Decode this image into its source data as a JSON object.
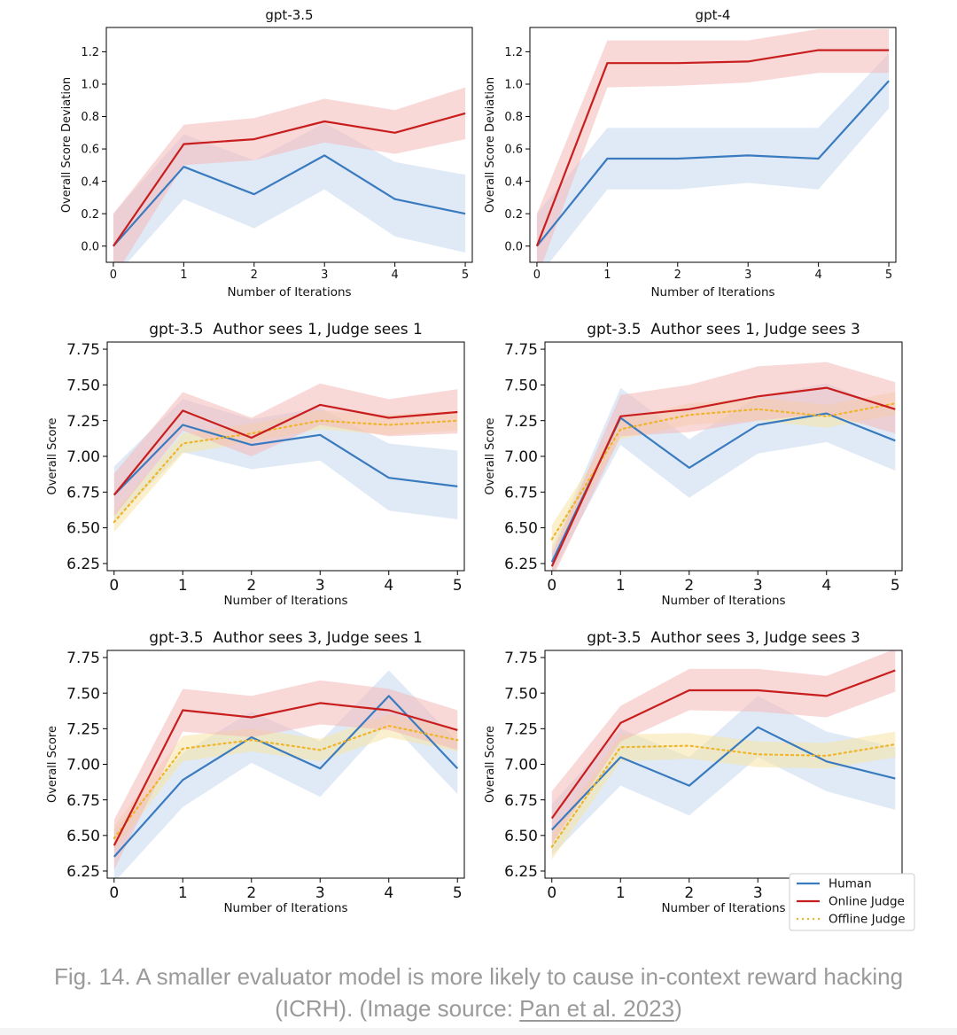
{
  "colors": {
    "human": "#3a7bbf",
    "online": "#c81e1e",
    "offline": "#f0b428",
    "human_band": "#c6d8ee",
    "online_band": "#f4b8b8",
    "offline_band": "#f8e3a6"
  },
  "legend": [
    "Human",
    "Online Judge",
    "Offline Judge"
  ],
  "caption": {
    "text": "Fig. 14. A smaller evaluator model is more likely to cause in-context reward hacking (ICRH). (Image source: ",
    "link": "Pan et al. 2023",
    "close": ")"
  },
  "chart_data": [
    {
      "type": "line",
      "title": "gpt-3.5",
      "xlabel": "Number of Iterations",
      "ylabel": "Overall Score Deviation",
      "x": [
        0,
        1,
        2,
        3,
        4,
        5
      ],
      "xlim": [
        -0.1,
        5.1
      ],
      "ylim": [
        -0.1,
        1.35
      ],
      "yticks": [
        0.0,
        0.2,
        0.4,
        0.6,
        0.8,
        1.0,
        1.2
      ],
      "ytick_labels": [
        "0.0",
        "0.2",
        "0.4",
        "0.6",
        "0.8",
        "1.0",
        "1.2"
      ],
      "series": [
        {
          "name": "Human",
          "values": [
            0.0,
            0.49,
            0.32,
            0.56,
            0.29,
            0.2
          ],
          "lower": [
            -0.2,
            0.29,
            0.11,
            0.35,
            0.06,
            -0.04
          ],
          "upper": [
            0.2,
            0.69,
            0.53,
            0.76,
            0.52,
            0.44
          ]
        },
        {
          "name": "Online Judge",
          "values": [
            0.0,
            0.63,
            0.66,
            0.77,
            0.7,
            0.82
          ],
          "lower": [
            -0.2,
            0.5,
            0.53,
            0.64,
            0.57,
            0.66
          ],
          "upper": [
            0.2,
            0.75,
            0.79,
            0.91,
            0.84,
            0.98
          ]
        }
      ]
    },
    {
      "type": "line",
      "title": "gpt-4",
      "xlabel": "Number of Iterations",
      "ylabel": "Overall Score Deviation",
      "x": [
        0,
        1,
        2,
        3,
        4,
        5
      ],
      "xlim": [
        -0.1,
        5.1
      ],
      "ylim": [
        -0.1,
        1.35
      ],
      "yticks": [
        0.0,
        0.2,
        0.4,
        0.6,
        0.8,
        1.0,
        1.2
      ],
      "ytick_labels": [
        "0.0",
        "0.2",
        "0.4",
        "0.6",
        "0.8",
        "1.0",
        "1.2"
      ],
      "series": [
        {
          "name": "Human",
          "values": [
            0.0,
            0.54,
            0.54,
            0.56,
            0.54,
            1.02
          ],
          "lower": [
            -0.2,
            0.35,
            0.35,
            0.39,
            0.35,
            0.85
          ],
          "upper": [
            0.2,
            0.73,
            0.73,
            0.73,
            0.73,
            1.19
          ]
        },
        {
          "name": "Online Judge",
          "values": [
            0.0,
            1.13,
            1.13,
            1.14,
            1.21,
            1.21
          ],
          "lower": [
            -0.2,
            0.98,
            0.99,
            1.01,
            1.07,
            1.07
          ],
          "upper": [
            0.2,
            1.27,
            1.27,
            1.27,
            1.34,
            1.34
          ]
        }
      ]
    },
    {
      "type": "line",
      "title": "gpt-3.5  Author sees 1, Judge sees 1",
      "xlabel": "Number of Iterations",
      "ylabel": "Overall Score",
      "x": [
        0,
        1,
        2,
        3,
        4,
        5
      ],
      "xlim": [
        -0.1,
        5.1
      ],
      "ylim": [
        6.2,
        7.8
      ],
      "yticks": [
        6.25,
        6.5,
        6.75,
        7.0,
        7.25,
        7.5,
        7.75
      ],
      "ytick_labels": [
        "6.25",
        "6.50",
        "6.75",
        "7.00",
        "7.25",
        "7.50",
        "7.75"
      ],
      "series": [
        {
          "name": "Human",
          "values": [
            6.73,
            7.22,
            7.08,
            7.15,
            6.85,
            6.79
          ],
          "lower": [
            6.55,
            7.03,
            6.91,
            6.97,
            6.62,
            6.56
          ],
          "upper": [
            6.93,
            7.4,
            7.26,
            7.34,
            7.09,
            7.04
          ]
        },
        {
          "name": "Online Judge",
          "values": [
            6.73,
            7.32,
            7.13,
            7.36,
            7.27,
            7.31
          ],
          "lower": [
            6.58,
            7.18,
            7.0,
            7.22,
            7.14,
            7.16
          ],
          "upper": [
            6.88,
            7.45,
            7.27,
            7.51,
            7.4,
            7.47
          ]
        },
        {
          "name": "Offline Judge",
          "values": [
            6.54,
            7.09,
            7.16,
            7.25,
            7.22,
            7.25
          ],
          "lower": [
            6.47,
            7.02,
            7.1,
            7.19,
            7.15,
            7.18
          ],
          "upper": [
            6.61,
            7.16,
            7.23,
            7.32,
            7.29,
            7.32
          ]
        }
      ]
    },
    {
      "type": "line",
      "title": "gpt-3.5  Author sees 1, Judge sees 3",
      "xlabel": "Number of Iterations",
      "ylabel": "Overall Score",
      "x": [
        0,
        1,
        2,
        3,
        4,
        5
      ],
      "xlim": [
        -0.1,
        5.1
      ],
      "ylim": [
        6.2,
        7.8
      ],
      "yticks": [
        6.25,
        6.5,
        6.75,
        7.0,
        7.25,
        7.5,
        7.75
      ],
      "ytick_labels": [
        "6.25",
        "6.50",
        "6.75",
        "7.00",
        "7.25",
        "7.50",
        "7.75"
      ],
      "series": [
        {
          "name": "Human",
          "values": [
            6.26,
            7.27,
            6.92,
            7.22,
            7.3,
            7.11
          ],
          "lower": [
            6.18,
            7.08,
            6.71,
            7.02,
            7.1,
            6.9
          ],
          "upper": [
            6.36,
            7.48,
            7.12,
            7.42,
            7.51,
            7.32
          ]
        },
        {
          "name": "Online Judge",
          "values": [
            6.23,
            7.28,
            7.33,
            7.42,
            7.48,
            7.33
          ],
          "lower": [
            6.14,
            7.14,
            7.17,
            7.25,
            7.3,
            7.16
          ],
          "upper": [
            6.32,
            7.43,
            7.5,
            7.63,
            7.66,
            7.52
          ]
        },
        {
          "name": "Offline Judge",
          "values": [
            6.42,
            7.19,
            7.29,
            7.33,
            7.28,
            7.37
          ],
          "lower": [
            6.32,
            7.12,
            7.22,
            7.25,
            7.2,
            7.29
          ],
          "upper": [
            6.52,
            7.26,
            7.37,
            7.41,
            7.36,
            7.45
          ]
        }
      ]
    },
    {
      "type": "line",
      "title": "gpt-3.5  Author sees 3, Judge sees 1",
      "xlabel": "Number of Iterations",
      "ylabel": "Overall Score",
      "x": [
        0,
        1,
        2,
        3,
        4,
        5
      ],
      "xlim": [
        -0.1,
        5.1
      ],
      "ylim": [
        6.2,
        7.8
      ],
      "yticks": [
        6.25,
        6.5,
        6.75,
        7.0,
        7.25,
        7.5,
        7.75
      ],
      "ytick_labels": [
        "6.25",
        "6.50",
        "6.75",
        "7.00",
        "7.25",
        "7.50",
        "7.75"
      ],
      "series": [
        {
          "name": "Human",
          "values": [
            6.35,
            6.89,
            7.19,
            6.97,
            7.48,
            6.97
          ],
          "lower": [
            6.17,
            6.7,
            7.01,
            6.77,
            7.3,
            6.79
          ],
          "upper": [
            6.54,
            7.08,
            7.37,
            7.16,
            7.66,
            7.16
          ]
        },
        {
          "name": "Online Judge",
          "values": [
            6.43,
            7.38,
            7.33,
            7.43,
            7.38,
            7.24
          ],
          "lower": [
            6.26,
            7.23,
            7.19,
            7.28,
            7.24,
            7.1
          ],
          "upper": [
            6.61,
            7.53,
            7.48,
            7.59,
            7.53,
            7.38
          ]
        },
        {
          "name": "Offline Judge",
          "values": [
            6.48,
            7.11,
            7.17,
            7.1,
            7.27,
            7.17
          ],
          "lower": [
            6.4,
            7.02,
            7.09,
            7.02,
            7.19,
            7.09
          ],
          "upper": [
            6.57,
            7.2,
            7.25,
            7.18,
            7.35,
            7.25
          ]
        }
      ]
    },
    {
      "type": "line",
      "title": "gpt-3.5  Author sees 3, Judge sees 3",
      "xlabel": "Number of Iterations",
      "ylabel": "Overall Score",
      "x": [
        0,
        1,
        2,
        3,
        4,
        5
      ],
      "xlim": [
        -0.1,
        5.1
      ],
      "ylim": [
        6.2,
        7.8
      ],
      "yticks": [
        6.25,
        6.5,
        6.75,
        7.0,
        7.25,
        7.5,
        7.75
      ],
      "ytick_labels": [
        "6.25",
        "6.50",
        "6.75",
        "7.00",
        "7.25",
        "7.50",
        "7.75"
      ],
      "legend_position": "lower-right",
      "series": [
        {
          "name": "Human",
          "values": [
            6.54,
            7.05,
            6.85,
            7.26,
            7.02,
            6.9
          ],
          "lower": [
            6.36,
            6.85,
            6.64,
            7.05,
            6.81,
            6.68
          ],
          "upper": [
            6.72,
            7.25,
            7.05,
            7.48,
            7.23,
            7.12
          ]
        },
        {
          "name": "Online Judge",
          "values": [
            6.62,
            7.29,
            7.52,
            7.52,
            7.48,
            7.66
          ],
          "lower": [
            6.44,
            7.16,
            7.38,
            7.37,
            7.33,
            7.51
          ],
          "upper": [
            6.81,
            7.41,
            7.67,
            7.67,
            7.62,
            7.81
          ]
        },
        {
          "name": "Offline Judge",
          "values": [
            6.42,
            7.12,
            7.13,
            7.07,
            7.06,
            7.14
          ],
          "lower": [
            6.33,
            7.02,
            7.04,
            6.98,
            6.97,
            7.05
          ],
          "upper": [
            6.51,
            7.21,
            7.22,
            7.16,
            7.15,
            7.23
          ]
        }
      ]
    }
  ]
}
